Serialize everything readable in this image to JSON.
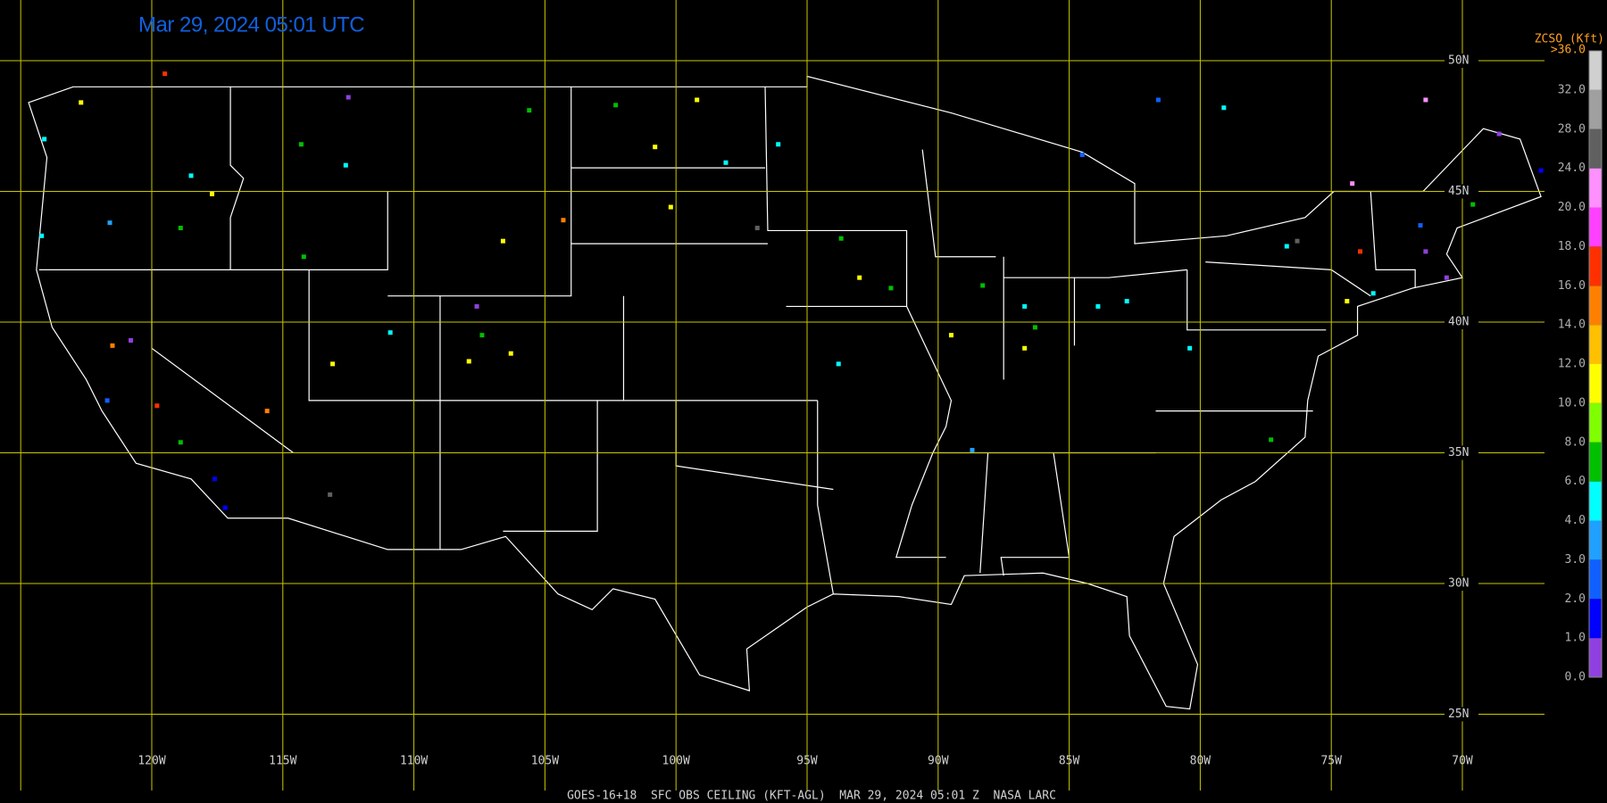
{
  "header": {
    "title": "Mar 29, 2024 05:01 UTC"
  },
  "footer": "GOES-16+18  SFC OBS CEILING (KFT-AGL)  MAR 29, 2024 05:01 Z  NASA LARC",
  "grid": {
    "color": "#c8c800",
    "lon": [
      {
        "value": -125,
        "label": null
      },
      {
        "value": -120,
        "label": "120W"
      },
      {
        "value": -115,
        "label": "115W"
      },
      {
        "value": -110,
        "label": "110W"
      },
      {
        "value": -105,
        "label": "105W"
      },
      {
        "value": -100,
        "label": "100W"
      },
      {
        "value": -95,
        "label": "95W"
      },
      {
        "value": -90,
        "label": "90W"
      },
      {
        "value": -85,
        "label": "85W"
      },
      {
        "value": -80,
        "label": "80W"
      },
      {
        "value": -75,
        "label": "75W"
      },
      {
        "value": -70,
        "label": "70W"
      }
    ],
    "lat": [
      {
        "value": 50,
        "label": "50N"
      },
      {
        "value": 45,
        "label": "45N"
      },
      {
        "value": 40,
        "label": "40N"
      },
      {
        "value": 35,
        "label": "35N"
      },
      {
        "value": 30,
        "label": "30N"
      },
      {
        "value": 25,
        "label": "25N"
      }
    ]
  },
  "colorbar": {
    "title": "ZCSO (Kft)",
    "ticks": [
      {
        "value": 0,
        "label": "0.0"
      },
      {
        "value": 1,
        "label": "1.0"
      },
      {
        "value": 2,
        "label": "2.0"
      },
      {
        "value": 3,
        "label": "3.0"
      },
      {
        "value": 4,
        "label": "4.0"
      },
      {
        "value": 6,
        "label": "6.0"
      },
      {
        "value": 8,
        "label": "8.0"
      },
      {
        "value": 10,
        "label": "10.0"
      },
      {
        "value": 12,
        "label": "12.0"
      },
      {
        "value": 14,
        "label": "14.0"
      },
      {
        "value": 16,
        "label": "16.0"
      },
      {
        "value": 18,
        "label": "18.0"
      },
      {
        "value": 20,
        "label": "20.0"
      },
      {
        "value": 24,
        "label": "24.0"
      },
      {
        "value": 28,
        "label": "28.0"
      },
      {
        "value": 32,
        "label": "32.0"
      },
      {
        "value": 36,
        "label": ">36.0"
      }
    ],
    "colors": [
      "#9040e0",
      "#0000ff",
      "#1060ff",
      "#20a0ff",
      "#00ffff",
      "#00c000",
      "#80ff00",
      "#ffff00",
      "#ffc000",
      "#ff8000",
      "#ff3000",
      "#ff40ff",
      "#ff90ff",
      "#606060",
      "#a0a0a0",
      "#d0d0d0"
    ]
  },
  "stations": {
    "lon": [
      -122.7,
      -124.1,
      -124.2,
      -121.6,
      -119.5,
      -118.5,
      -117.7,
      -118.9,
      -121.5,
      -120.8,
      -119.8,
      -121.7,
      -117.2,
      -117.6,
      -115.6,
      -118.9,
      -112.5,
      -114.3,
      -112.6,
      -114.2,
      -110.9,
      -113.1,
      -107.6,
      -107.4,
      -107.9,
      -106.3,
      -106.6,
      -105.6,
      -104.3,
      -102.3,
      -100.8,
      -99.2,
      -100.2,
      -98.1,
      -96.1,
      -93.7,
      -93.0,
      -93.8,
      -91.8,
      -89.5,
      -88.7,
      -88.3,
      -86.7,
      -86.3,
      -86.7,
      -84.5,
      -83.9,
      -82.8,
      -81.6,
      -79.1,
      -80.4,
      -77.3,
      -76.7,
      -74.4,
      -73.4,
      -73.9,
      -71.4,
      -70.6,
      -71.6,
      -69.6,
      -68.6,
      -67.0,
      -71.4,
      -74.2,
      -96.9,
      -113.2,
      -76.3
    ],
    "lat": [
      48.4,
      47.0,
      43.3,
      43.8,
      49.5,
      45.6,
      44.9,
      43.6,
      39.1,
      39.3,
      36.8,
      37.0,
      32.9,
      34.0,
      36.6,
      35.4,
      48.6,
      46.8,
      46.0,
      42.5,
      39.6,
      38.4,
      40.6,
      39.5,
      38.5,
      38.8,
      43.1,
      48.1,
      43.9,
      48.3,
      46.7,
      48.5,
      44.4,
      46.1,
      46.8,
      43.2,
      41.7,
      38.4,
      41.3,
      39.5,
      35.1,
      41.4,
      40.6,
      39.8,
      39.0,
      46.4,
      40.6,
      40.8,
      48.5,
      48.2,
      39.0,
      35.5,
      42.9,
      40.8,
      41.1,
      42.7,
      42.7,
      41.7,
      43.7,
      44.5,
      47.2,
      45.8,
      48.5,
      45.3,
      43.6,
      33.4,
      43.1
    ],
    "values": [
      11,
      5,
      5,
      3.5,
      17,
      5,
      11,
      7,
      15,
      0.5,
      17,
      2.5,
      1.5,
      1.5,
      15,
      7,
      0.5,
      7,
      5,
      7,
      5,
      11,
      0.5,
      7,
      11,
      11,
      11,
      7,
      15,
      7,
      11,
      11,
      11,
      5,
      5,
      7,
      11,
      5,
      7,
      11,
      3.5,
      7,
      5,
      7,
      11,
      2.5,
      5,
      5,
      2.5,
      5,
      5,
      7,
      5,
      11,
      5,
      17,
      0.5,
      0.5,
      2.5,
      7,
      0.5,
      1.5,
      22,
      22,
      26,
      26,
      26
    ]
  }
}
